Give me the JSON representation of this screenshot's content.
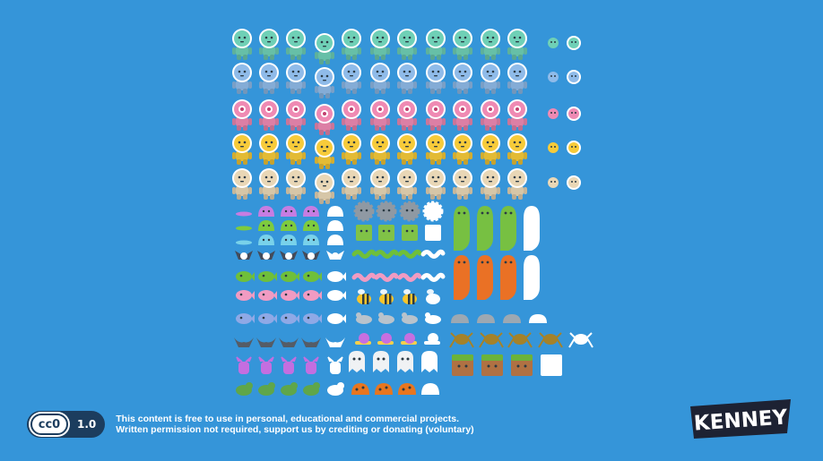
{
  "license": {
    "badge": "cc0",
    "version": "1.0",
    "line1": "This content is free to use in personal, educational and commercial projects.",
    "line2": "Written permission not required, support us by crediting or donating (voluntary)"
  },
  "brand": {
    "logo_text": "KENNEY"
  },
  "colors": {
    "background": "#3595d9",
    "alien_rows": [
      "#6fd0b6",
      "#8fbbe9",
      "#ef8ab3",
      "#f7cb3a",
      "#e9d7b6"
    ],
    "slime": [
      "#c77de2",
      "#7ecb3e",
      "#79d2ea"
    ],
    "worm_tall_green": "#77c042",
    "worm_tall_orange": "#ea7125",
    "block": "#80c247",
    "grass": "#6bb33a",
    "dirt": "#b07143"
  },
  "sprites": {
    "alien_row_count": 5,
    "alien_row_names": [
      "green",
      "blue",
      "pink",
      "yellow",
      "beige"
    ],
    "enemy_rows": [
      "slime",
      "slime-green",
      "slime-blue",
      "fly",
      "fish-green",
      "fish-pink",
      "bird",
      "bat",
      "monster",
      "turtle"
    ]
  }
}
